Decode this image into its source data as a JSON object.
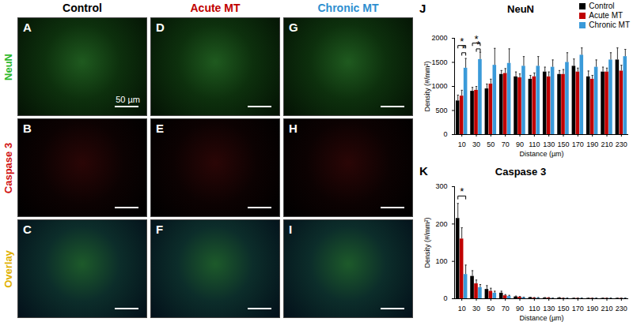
{
  "image_panels": {
    "columns": [
      {
        "label": "Control",
        "color": "#000000"
      },
      {
        "label": "Acute MT",
        "color": "#c00000"
      },
      {
        "label": "Chronic MT",
        "color": "#2e8fd0"
      }
    ],
    "rows": [
      {
        "label": "NeuN",
        "color": "#2db82d"
      },
      {
        "label": "Caspase 3",
        "color": "#d01010"
      },
      {
        "label": "Overlay",
        "color": "#e0b000"
      }
    ],
    "letters": [
      [
        "A",
        "D",
        "G"
      ],
      [
        "B",
        "E",
        "H"
      ],
      [
        "C",
        "F",
        "I"
      ]
    ],
    "scale_bar": "50 µm"
  },
  "chart_data": [
    {
      "type": "bar",
      "panel_label": "J",
      "title": "NeuN",
      "xlabel": "Distance (µm)",
      "ylabel": "Density (#/mm²)",
      "categories": [
        10,
        30,
        50,
        70,
        90,
        110,
        130,
        150,
        170,
        190,
        210,
        230
      ],
      "series": [
        {
          "name": "Control",
          "color": "#000000",
          "values": [
            700,
            900,
            950,
            1250,
            1200,
            1150,
            1300,
            1250,
            1420,
            1200,
            1300,
            1550
          ],
          "errors": [
            120,
            80,
            100,
            80,
            100,
            80,
            100,
            80,
            150,
            120,
            100,
            250
          ]
        },
        {
          "name": "Acute MT",
          "color": "#c00000",
          "values": [
            800,
            920,
            1050,
            1270,
            1180,
            1200,
            1200,
            1250,
            1300,
            1150,
            1300,
            1320
          ],
          "errors": [
            120,
            80,
            100,
            100,
            80,
            80,
            100,
            100,
            80,
            80,
            80,
            120
          ]
        },
        {
          "name": "Chronic MT",
          "color": "#3a9ad9",
          "values": [
            1380,
            1560,
            1440,
            1480,
            1420,
            1420,
            1400,
            1500,
            1650,
            1400,
            1550,
            1620
          ],
          "errors": [
            200,
            150,
            350,
            300,
            200,
            200,
            150,
            200,
            150,
            150,
            150,
            150
          ]
        }
      ],
      "ylim": [
        0,
        2000
      ],
      "yticks": [
        0,
        500,
        1000,
        1500,
        2000
      ],
      "legend": "top-right",
      "annotations": [
        {
          "text": "*",
          "category": 10,
          "between": [
            "Control",
            "Chronic MT"
          ],
          "y": 1850
        },
        {
          "text": "*",
          "category": 10,
          "between": [
            "Acute MT",
            "Chronic MT"
          ],
          "y": 1700
        },
        {
          "text": "*",
          "category": 30,
          "between": [
            "Control",
            "Chronic MT"
          ],
          "y": 1900
        },
        {
          "text": "*",
          "category": 30,
          "between": [
            "Acute MT",
            "Chronic MT"
          ],
          "y": 1780
        }
      ]
    },
    {
      "type": "bar",
      "panel_label": "K",
      "title": "Caspase 3",
      "xlabel": "Distance (µm)",
      "ylabel": "Density (#/mm²)",
      "categories": [
        10,
        30,
        50,
        70,
        90,
        110,
        130,
        150,
        170,
        190,
        210,
        230
      ],
      "series": [
        {
          "name": "Control",
          "color": "#000000",
          "values": [
            215,
            60,
            25,
            15,
            5,
            3,
            2,
            2,
            1,
            1,
            1,
            1
          ],
          "errors": [
            40,
            15,
            10,
            5,
            2,
            1,
            1,
            1,
            1,
            1,
            1,
            1
          ]
        },
        {
          "name": "Acute MT",
          "color": "#c00000",
          "values": [
            160,
            40,
            20,
            8,
            4,
            2,
            2,
            1,
            1,
            1,
            1,
            1
          ],
          "errors": [
            30,
            10,
            8,
            3,
            2,
            1,
            1,
            1,
            1,
            1,
            1,
            1
          ]
        },
        {
          "name": "Chronic MT",
          "color": "#3a9ad9",
          "values": [
            65,
            30,
            15,
            6,
            3,
            2,
            1,
            1,
            1,
            1,
            1,
            1
          ],
          "errors": [
            25,
            8,
            5,
            3,
            1,
            1,
            1,
            1,
            1,
            1,
            1,
            1
          ]
        }
      ],
      "ylim": [
        0,
        300
      ],
      "yticks": [
        0,
        100,
        200,
        300
      ],
      "annotations": [
        {
          "text": "*",
          "category": 10,
          "between": [
            "Control",
            "Chronic MT"
          ],
          "y": 275
        }
      ]
    }
  ]
}
